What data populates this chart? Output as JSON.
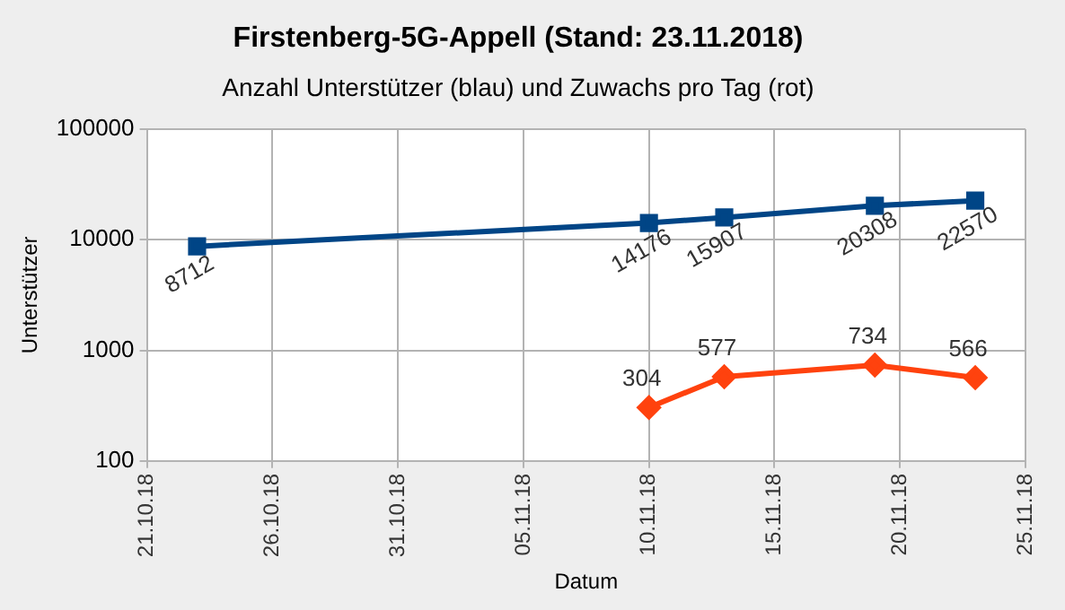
{
  "chart_data": {
    "type": "line",
    "title": "Firstenberg-5G-Appell (Stand: 23.11.2018)",
    "subtitle": "Anzahl Unterstützer (blau) und Zuwachs pro Tag (rot)",
    "xlabel": "Datum",
    "ylabel": "Unterstützer",
    "log": "y",
    "grid": true,
    "legend": false,
    "data_labels": true,
    "line_style": "solid",
    "xlim": [
      "2018-10-21",
      "2018-11-25"
    ],
    "xticks": [
      {
        "value": "2018-10-21",
        "label": "21.10.18"
      },
      {
        "value": "2018-10-26",
        "label": "26.10.18"
      },
      {
        "value": "2018-10-31",
        "label": "31.10.18"
      },
      {
        "value": "2018-11-05",
        "label": "05.11.18"
      },
      {
        "value": "2018-11-10",
        "label": "10.11.18"
      },
      {
        "value": "2018-11-15",
        "label": "15.11.18"
      },
      {
        "value": "2018-11-20",
        "label": "20.11.18"
      },
      {
        "value": "2018-11-25",
        "label": "25.11.18"
      }
    ],
    "ylim": [
      100,
      100000
    ],
    "yticks": [
      100,
      1000,
      10000,
      100000
    ],
    "series": [
      {
        "color": "#004586",
        "marker": "square",
        "x": [
          "2018-10-23",
          "2018-11-10",
          "2018-11-13",
          "2018-11-19",
          "2018-11-23"
        ],
        "values": [
          8712,
          14176,
          15907,
          20308,
          22570
        ]
      },
      {
        "color": "#ff420e",
        "marker": "diamond",
        "x": [
          "2018-11-10",
          "2018-11-13",
          "2018-11-19",
          "2018-11-23"
        ],
        "values": [
          304,
          577,
          734,
          566
        ]
      }
    ]
  }
}
